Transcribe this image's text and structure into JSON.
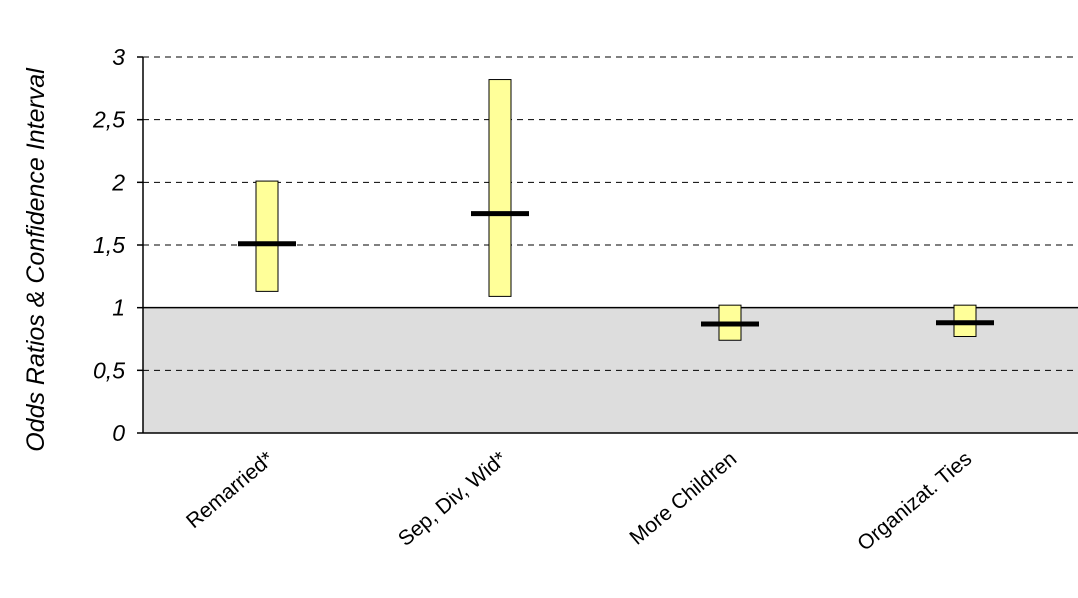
{
  "chart_data": {
    "type": "error-bar",
    "ylabel": "Odds Ratios & Confidence Interval",
    "xlabel": "",
    "ylim": [
      0,
      3
    ],
    "yticks": [
      0,
      0.5,
      1,
      1.5,
      2,
      2.5,
      3
    ],
    "ytick_labels": [
      "0",
      "0,5",
      "1",
      "1,5",
      "2",
      "2,5",
      "3"
    ],
    "grid": "dashed horizontal",
    "reference_line": 1,
    "shaded_below_reference": true,
    "categories": [
      "Remarried*",
      "Sep, Div, Wid*",
      "More Children",
      "Organizat. Ties"
    ],
    "series": [
      {
        "odds_ratio": [
          1.51,
          1.75,
          0.87,
          0.88
        ],
        "ci_low": [
          1.13,
          1.09,
          0.74,
          0.77
        ],
        "ci_high": [
          2.01,
          2.82,
          1.02,
          1.02
        ]
      }
    ],
    "colors": {
      "interval_fill": "#ffff99",
      "marker": "#000000",
      "shade": "#dddddd",
      "grid": "#000000"
    }
  }
}
